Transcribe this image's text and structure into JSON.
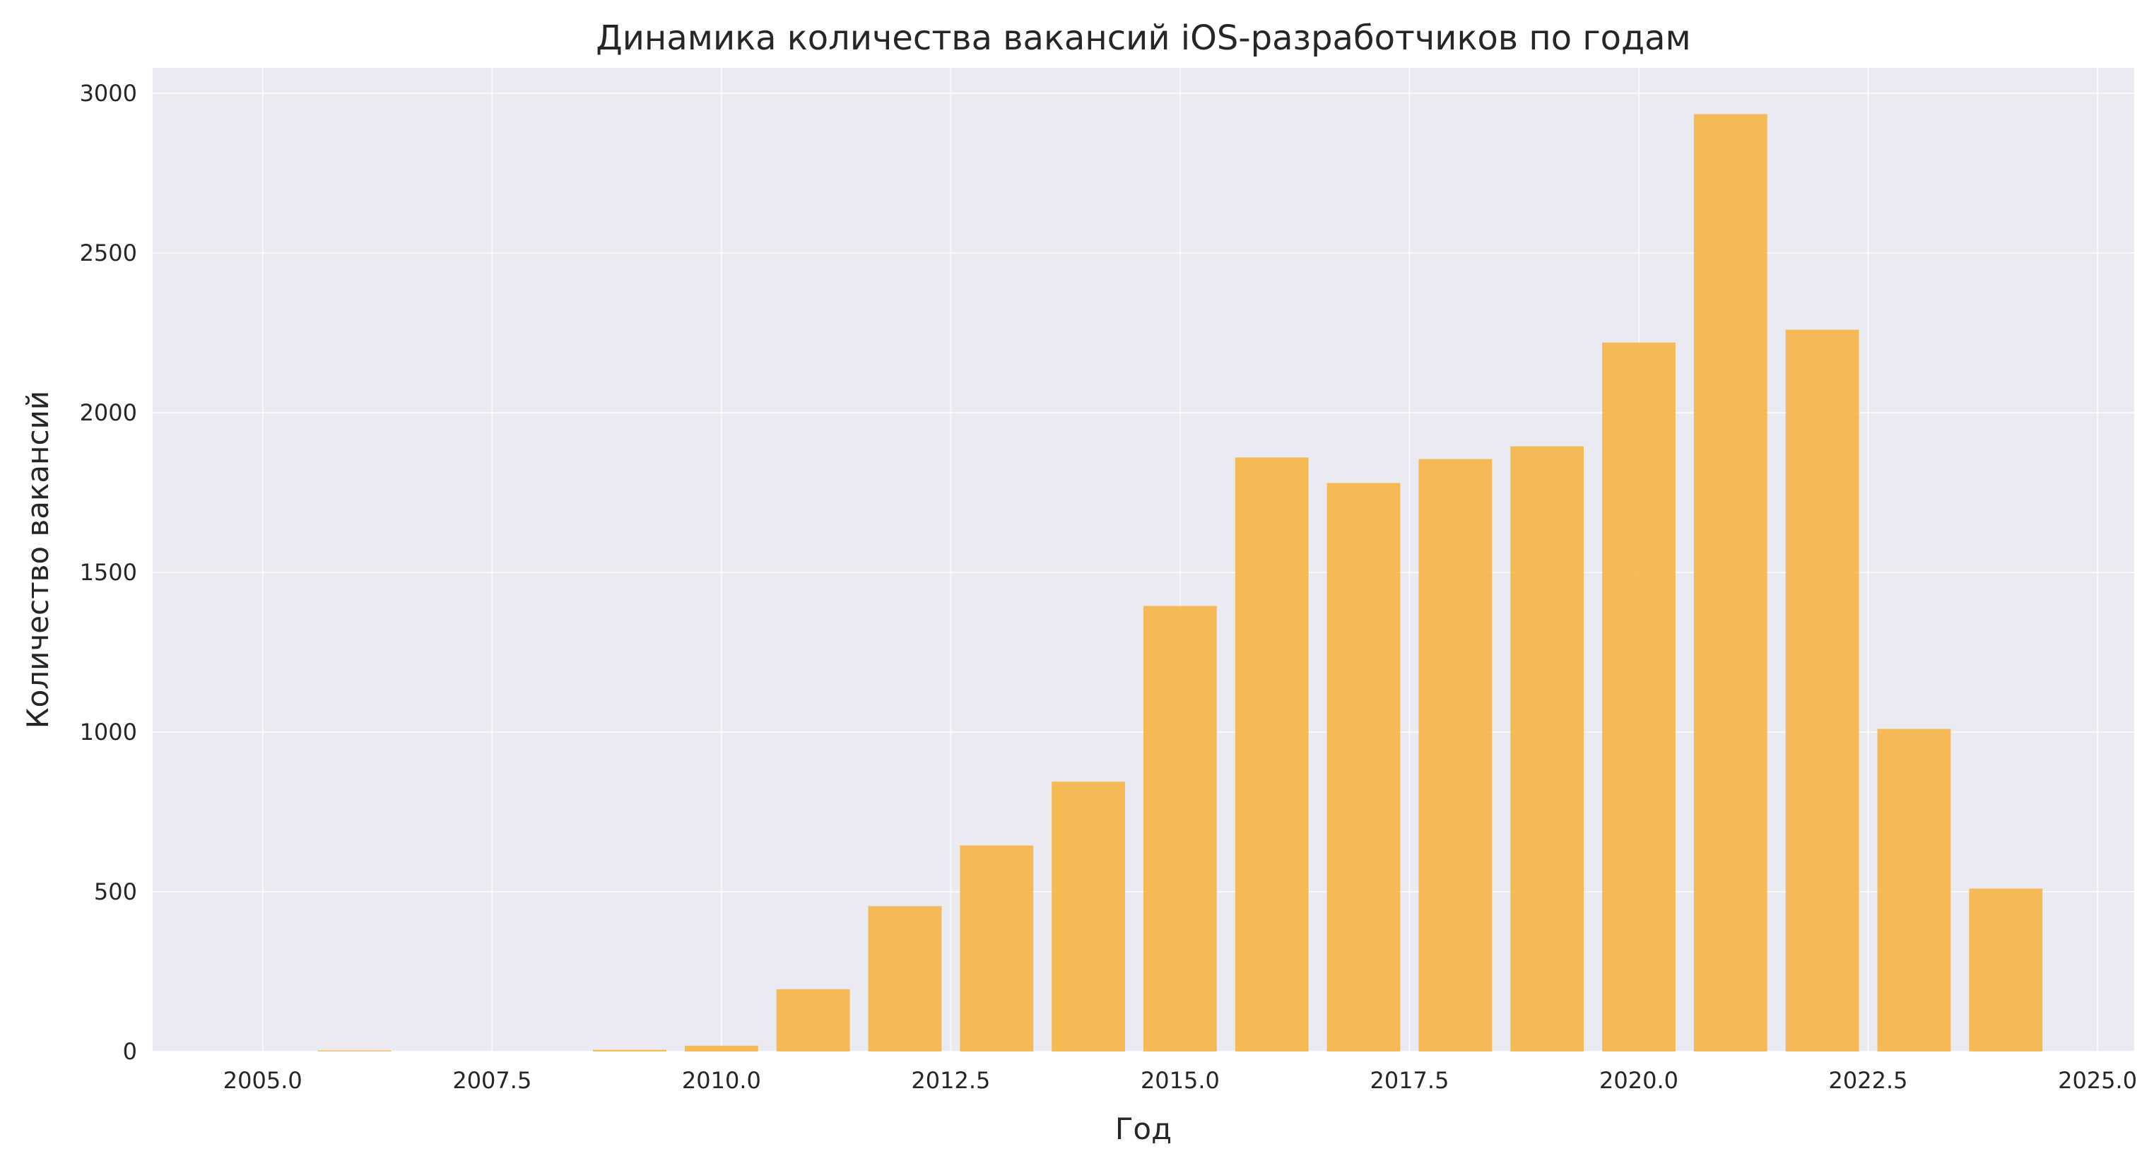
{
  "chart_data": {
    "type": "bar",
    "title": "Динамика количества вакансий iOS-разработчиков по годам",
    "xlabel": "Год",
    "ylabel": "Количество вакансий",
    "xlim": [
      2003.8,
      2025.4
    ],
    "ylim": [
      0,
      3080
    ],
    "xticks": [
      2005.0,
      2007.5,
      2010.0,
      2012.5,
      2015.0,
      2017.5,
      2020.0,
      2022.5,
      2025.0
    ],
    "xtick_labels": [
      "2005.0",
      "2007.5",
      "2010.0",
      "2012.5",
      "2015.0",
      "2017.5",
      "2020.0",
      "2022.5",
      "2025.0"
    ],
    "yticks": [
      0,
      500,
      1000,
      1500,
      2000,
      2500,
      3000
    ],
    "ytick_labels": [
      "0",
      "500",
      "1000",
      "1500",
      "2000",
      "2500",
      "3000"
    ],
    "bar_width": 0.8,
    "grid": true,
    "bar_color": "#f7b13b",
    "background": "#eaeaf2",
    "x": [
      2006,
      2009,
      2010,
      2011,
      2012,
      2013,
      2014,
      2015,
      2016,
      2017,
      2018,
      2019,
      2020,
      2021,
      2022,
      2023,
      2024
    ],
    "values": [
      3,
      5,
      18,
      195,
      455,
      645,
      845,
      1395,
      1860,
      1780,
      1855,
      1895,
      2220,
      2935,
      2260,
      1010,
      510
    ]
  }
}
